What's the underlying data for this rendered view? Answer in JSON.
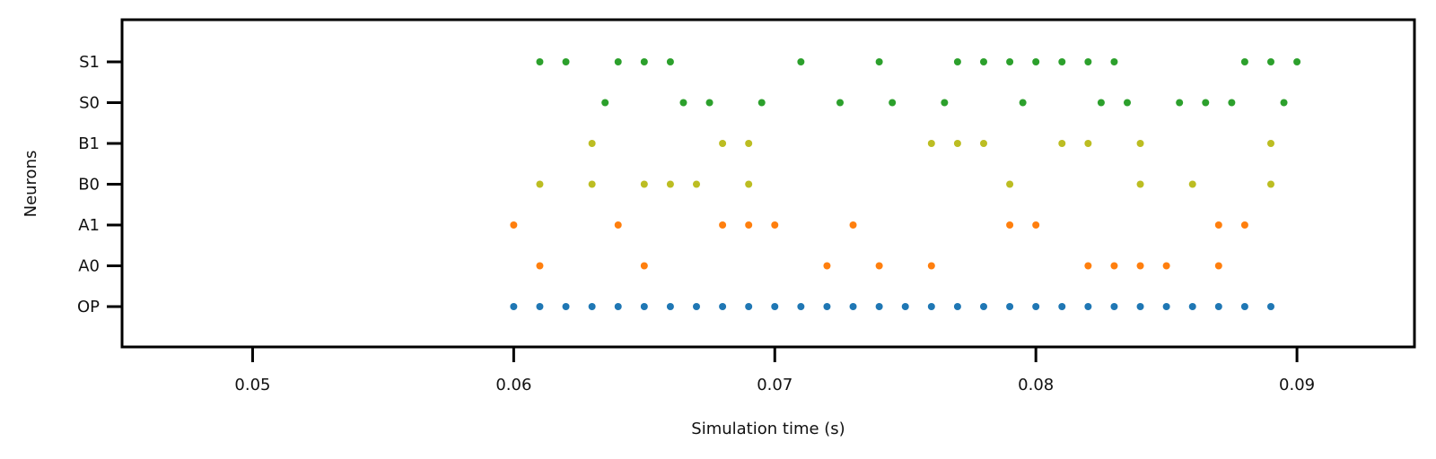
{
  "chart_data": {
    "type": "scatter",
    "title": "",
    "xlabel": "Simulation time (s)",
    "ylabel": "Neurons",
    "xlim": [
      0.045,
      0.0945
    ],
    "x_ticks": [
      0.05,
      0.06,
      0.07,
      0.08,
      0.09
    ],
    "x_tick_labels": [
      "0.05",
      "0.06",
      "0.07",
      "0.08",
      "0.09"
    ],
    "categories": [
      "OP",
      "A0",
      "A1",
      "B0",
      "B1",
      "S0",
      "S1"
    ],
    "grid": false,
    "series": [
      {
        "row": "OP",
        "color": "#1f77b4",
        "x": [
          0.06,
          0.061,
          0.062,
          0.063,
          0.064,
          0.065,
          0.066,
          0.067,
          0.068,
          0.069,
          0.07,
          0.071,
          0.072,
          0.073,
          0.074,
          0.075,
          0.076,
          0.077,
          0.078,
          0.079,
          0.08,
          0.081,
          0.082,
          0.083,
          0.084,
          0.085,
          0.086,
          0.087,
          0.088,
          0.089
        ]
      },
      {
        "row": "A0",
        "color": "#ff7f0e",
        "x": [
          0.061,
          0.065,
          0.072,
          0.074,
          0.076,
          0.082,
          0.083,
          0.084,
          0.085,
          0.087
        ]
      },
      {
        "row": "A1",
        "color": "#ff7f0e",
        "x": [
          0.06,
          0.064,
          0.068,
          0.069,
          0.07,
          0.073,
          0.079,
          0.08,
          0.087,
          0.088
        ]
      },
      {
        "row": "B0",
        "color": "#bcbd22",
        "x": [
          0.061,
          0.063,
          0.065,
          0.066,
          0.067,
          0.069,
          0.079,
          0.084,
          0.086,
          0.089
        ]
      },
      {
        "row": "B1",
        "color": "#bcbd22",
        "x": [
          0.063,
          0.068,
          0.069,
          0.076,
          0.077,
          0.078,
          0.081,
          0.082,
          0.084,
          0.089
        ]
      },
      {
        "row": "S0",
        "color": "#2ca02c",
        "x": [
          0.0635,
          0.0665,
          0.0675,
          0.0695,
          0.0725,
          0.0745,
          0.0765,
          0.0795,
          0.0825,
          0.0835,
          0.0855,
          0.0865,
          0.0875,
          0.0895
        ]
      },
      {
        "row": "S1",
        "color": "#2ca02c",
        "x": [
          0.061,
          0.062,
          0.064,
          0.065,
          0.066,
          0.071,
          0.074,
          0.077,
          0.078,
          0.079,
          0.08,
          0.081,
          0.082,
          0.083,
          0.088,
          0.089,
          0.09
        ]
      }
    ]
  }
}
